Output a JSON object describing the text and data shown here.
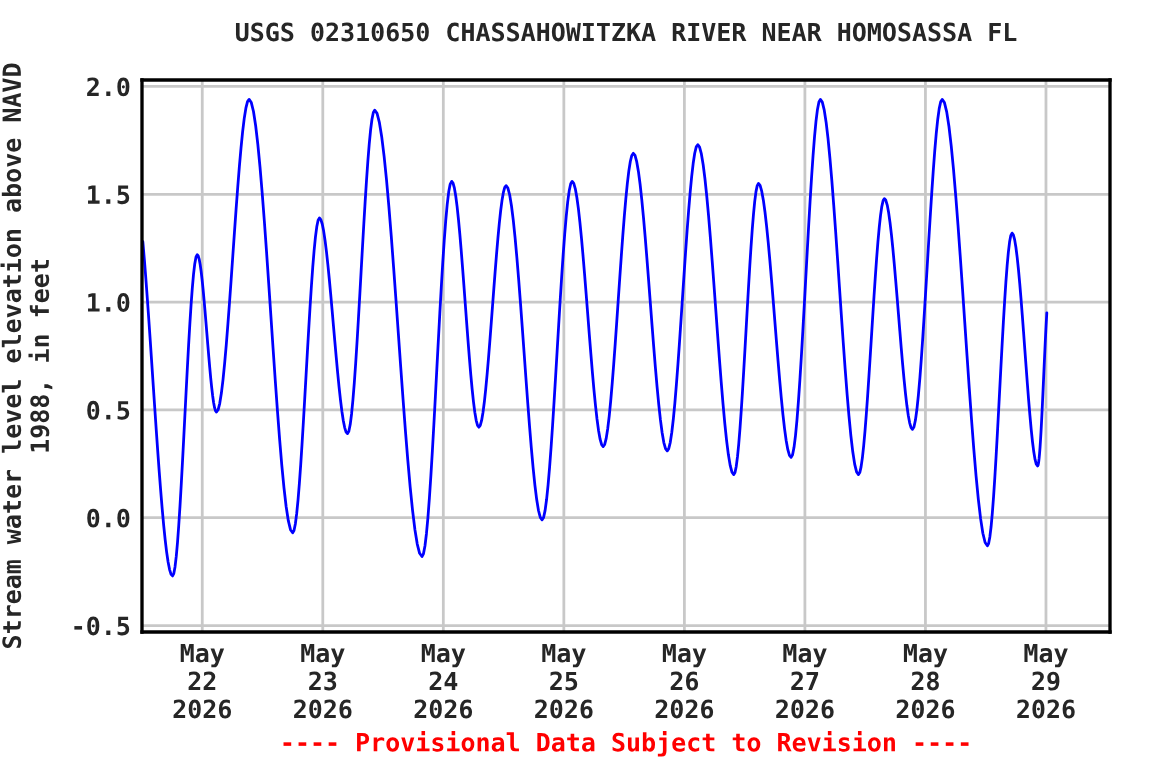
{
  "chart_data": {
    "type": "line",
    "title": "USGS 02310650 CHASSAHOWITZKA RIVER NEAR HOMOSASSA FL",
    "ylabel": "Stream water level elevation above NAVD\n1988, in feet",
    "annotations": [
      "---- Provisional Data Subject to Revision ----"
    ],
    "x": [
      "2026-05-21T12:10",
      "2026-05-21T18:05",
      "2026-05-21T23:00",
      "2026-05-22T02:50",
      "2026-05-22T09:20",
      "2026-05-22T18:00",
      "2026-05-22T23:20",
      "2026-05-23T04:55",
      "2026-05-23T10:20",
      "2026-05-23T19:45",
      "2026-05-24T01:40",
      "2026-05-24T07:05",
      "2026-05-24T12:30",
      "2026-05-24T19:40",
      "2026-05-25T01:40",
      "2026-05-25T07:50",
      "2026-05-25T13:50",
      "2026-05-25T20:35",
      "2026-05-26T02:40",
      "2026-05-26T09:50",
      "2026-05-26T14:45",
      "2026-05-26T21:15",
      "2026-05-27T03:05",
      "2026-05-27T10:40",
      "2026-05-27T15:50",
      "2026-05-27T21:25",
      "2026-05-28T03:20",
      "2026-05-28T12:20",
      "2026-05-28T17:15",
      "2026-05-28T22:20",
      "2026-05-29T00:10"
    ],
    "series": [
      {
        "color": "#0000ff",
        "values": [
          1.28,
          -0.27,
          1.22,
          0.49,
          1.94,
          -0.07,
          1.39,
          0.39,
          1.89,
          -0.18,
          1.56,
          0.42,
          1.54,
          -0.01,
          1.56,
          0.33,
          1.69,
          0.31,
          1.73,
          0.2,
          1.55,
          0.28,
          1.94,
          0.2,
          1.48,
          0.41,
          1.94,
          -0.13,
          1.32,
          0.24,
          0.95
        ]
      }
    ],
    "xlim": [
      "2026-05-21T12:00",
      "2026-05-29T12:45"
    ],
    "xticks": [
      {
        "value": "2026-05-22",
        "label": "May\n22\n2026"
      },
      {
        "value": "2026-05-23",
        "label": "May\n23\n2026"
      },
      {
        "value": "2026-05-24",
        "label": "May\n24\n2026"
      },
      {
        "value": "2026-05-25",
        "label": "May\n25\n2026"
      },
      {
        "value": "2026-05-26",
        "label": "May\n26\n2026"
      },
      {
        "value": "2026-05-27",
        "label": "May\n27\n2026"
      },
      {
        "value": "2026-05-28",
        "label": "May\n28\n2026"
      },
      {
        "value": "2026-05-29",
        "label": "May\n29\n2026"
      }
    ],
    "ylim": [
      -0.53,
      2.03
    ],
    "yticks": [
      {
        "value": -0.5,
        "label": "-0.5"
      },
      {
        "value": 0.0,
        "label": "0.0"
      },
      {
        "value": 0.5,
        "label": "0.5"
      },
      {
        "value": 1.0,
        "label": "1.0"
      },
      {
        "value": 1.5,
        "label": "1.5"
      },
      {
        "value": 2.0,
        "label": "2.0"
      }
    ],
    "grid": true,
    "legend": false,
    "marker": "none",
    "line_style": "solid"
  }
}
